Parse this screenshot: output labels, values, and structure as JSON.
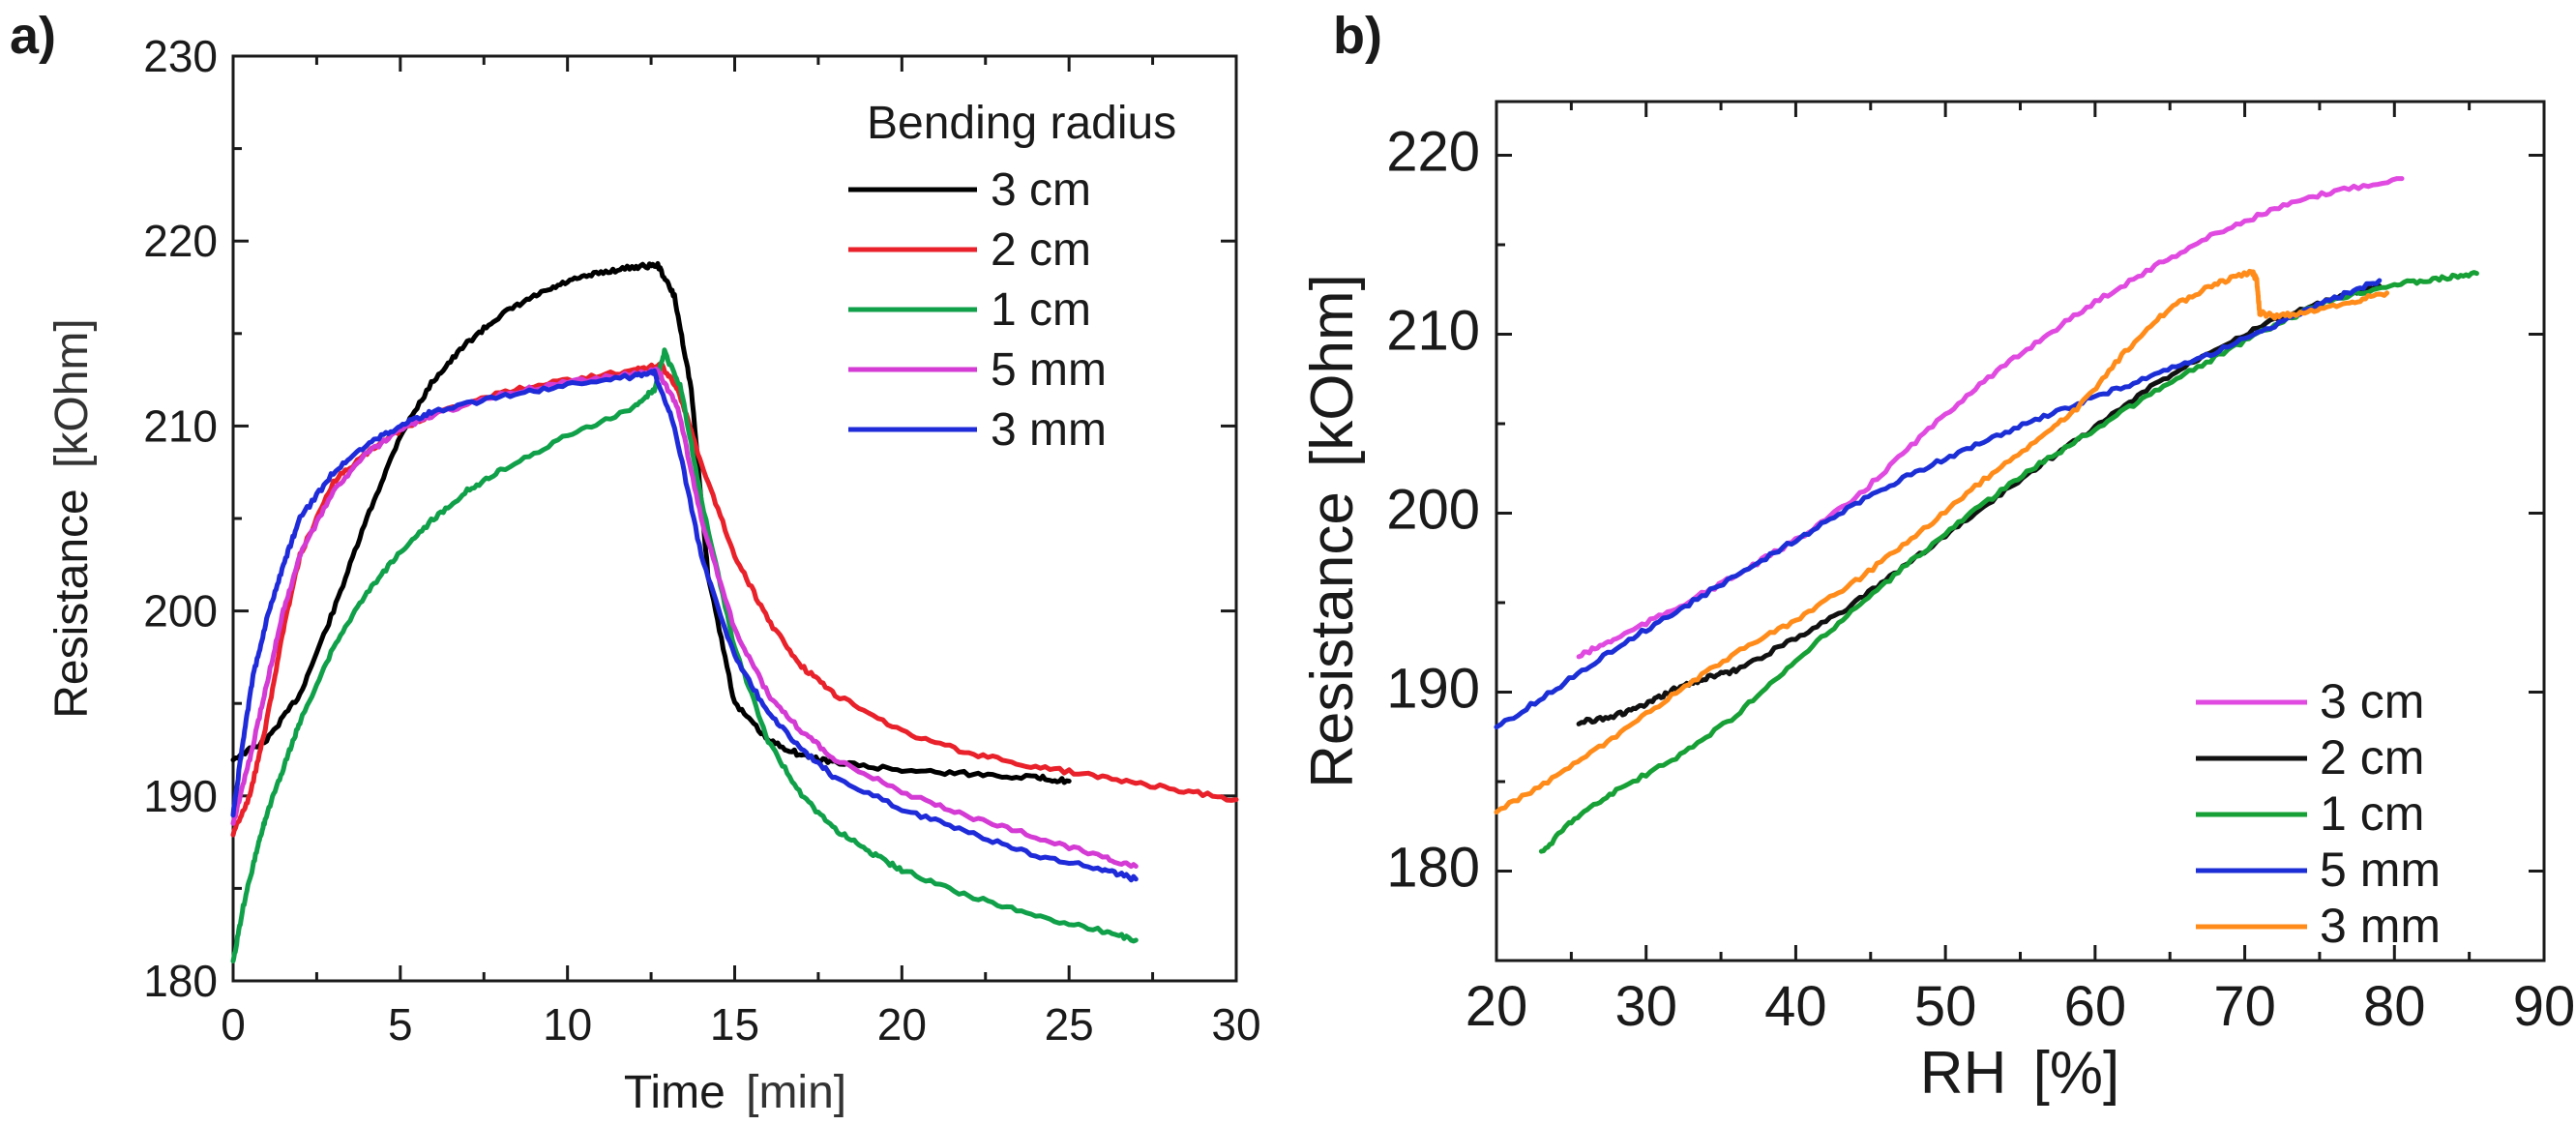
{
  "chart_data": [
    {
      "panel": "a)",
      "type": "line",
      "title": "",
      "xlabel_main": "Time",
      "xlabel_unit": "[min]",
      "ylabel_main": "Resistance",
      "ylabel_unit": "[kOhm]",
      "xlim": [
        0,
        30
      ],
      "ylim": [
        180,
        230
      ],
      "xticks": [
        "0",
        "5",
        "10",
        "15",
        "20",
        "25",
        "30"
      ],
      "yticks": [
        "180",
        "190",
        "200",
        "210",
        "220",
        "230"
      ],
      "legend_title": "Bending radius",
      "legend_position": "top-right",
      "series": [
        {
          "name": "3 cm",
          "color": "#000000",
          "x": [
            0,
            1,
            2,
            3,
            4,
            5,
            6,
            7,
            8,
            9,
            10,
            11,
            12,
            12.7,
            13.2,
            13.7,
            14.2,
            15,
            16,
            17,
            18,
            20,
            22,
            24,
            25
          ],
          "y": [
            192,
            193,
            195.5,
            200,
            205,
            209.5,
            212.5,
            214.5,
            216,
            217,
            217.8,
            218.3,
            218.6,
            218.7,
            217,
            212,
            202,
            195,
            193,
            192.2,
            191.8,
            191.4,
            191.2,
            191,
            190.8
          ]
        },
        {
          "name": "2 cm",
          "color": "#e8212a",
          "x": [
            0,
            0.5,
            1,
            1.5,
            2,
            3,
            4,
            5,
            6,
            8,
            10,
            12,
            12.8,
            13.3,
            14,
            15,
            16,
            17,
            18,
            20,
            22,
            24,
            26,
            28,
            30
          ],
          "y": [
            188,
            190,
            194,
            199,
            203,
            207,
            208.5,
            209.8,
            210.7,
            211.8,
            212.5,
            213,
            213.3,
            212,
            208,
            203,
            199.5,
            197,
            195.5,
            193.5,
            192.3,
            191.6,
            191,
            190.4,
            189.8
          ]
        },
        {
          "name": "1 cm",
          "color": "#11a04a",
          "x": [
            0,
            0.3,
            0.7,
            1,
            1.5,
            2,
            3,
            4,
            5,
            6,
            7,
            8,
            10,
            12,
            12.6,
            12.9,
            13.4,
            14,
            15,
            16,
            17,
            18,
            19,
            20,
            22,
            24,
            26,
            27
          ],
          "y": [
            181,
            184,
            187,
            189,
            191.5,
            194,
            198,
            201,
            203.2,
            205,
            206.5,
            207.6,
            209.5,
            211,
            212,
            214,
            212,
            206,
            198,
            193,
            190,
            188.2,
            187,
            186,
            184.6,
            183.5,
            182.7,
            182.2
          ]
        },
        {
          "name": "5 mm",
          "color": "#d43ad4",
          "x": [
            0,
            0.5,
            1,
            1.5,
            2,
            3,
            4,
            5,
            6,
            8,
            10,
            12,
            12.7,
            13.3,
            14,
            15,
            16,
            17,
            18,
            20,
            22,
            24,
            26,
            27
          ],
          "y": [
            188.5,
            192,
            196,
            200,
            203,
            206.5,
            208.5,
            209.8,
            210.6,
            211.7,
            212.4,
            212.8,
            213,
            211,
            205,
            199,
            195.5,
            193.5,
            192,
            190.2,
            188.9,
            187.8,
            186.7,
            186.2
          ]
        },
        {
          "name": "3 mm",
          "color": "#1f2bd8",
          "x": [
            0,
            0.3,
            0.6,
            1,
            1.5,
            2,
            3,
            4,
            5,
            6,
            8,
            10,
            12,
            12.6,
            13.2,
            14,
            15,
            16,
            17,
            18,
            20,
            22,
            24,
            26,
            27
          ],
          "y": [
            189,
            193,
            196.5,
            199.5,
            202.5,
            205,
            207.5,
            209,
            210,
            210.8,
            211.6,
            212.2,
            212.7,
            212.9,
            210,
            203,
            197.5,
            194.5,
            192.5,
            191,
            189.3,
            188,
            186.8,
            186,
            185.5
          ]
        }
      ]
    },
    {
      "panel": "b)",
      "type": "line",
      "title": "",
      "xlabel_main": "RH",
      "xlabel_unit": "[%]",
      "ylabel_main": "Resistance",
      "ylabel_unit": "[kOhm]",
      "xlim": [
        20,
        90
      ],
      "ylim": [
        175,
        223
      ],
      "xticks": [
        "20",
        "30",
        "40",
        "50",
        "60",
        "70",
        "80",
        "90"
      ],
      "yticks": [
        "180",
        "190",
        "200",
        "210",
        "220"
      ],
      "legend_position": "bottom-right",
      "series": [
        {
          "name": "3 cm",
          "color": "#e04ae0",
          "x": [
            25.5,
            28,
            32,
            36,
            40,
            44,
            48,
            52,
            56,
            60,
            64,
            68,
            72,
            76,
            80.5
          ],
          "y": [
            192,
            193,
            194.7,
            196.5,
            198.5,
            200.8,
            204,
            207,
            209.5,
            211.8,
            213.8,
            215.6,
            217,
            218,
            218.7
          ]
        },
        {
          "name": "2 cm",
          "color": "#111111",
          "x": [
            25.5,
            28,
            30,
            32,
            34,
            36,
            40,
            44,
            48,
            52,
            56,
            60,
            64,
            68,
            72,
            76,
            79
          ],
          "y": [
            188.3,
            188.7,
            189.3,
            190.2,
            190.8,
            191.2,
            193,
            195,
            197.5,
            200,
            202.5,
            204.8,
            207.2,
            209.2,
            210.8,
            212,
            212.7
          ]
        },
        {
          "name": "1 cm",
          "color": "#17a035",
          "x": [
            23,
            25,
            28,
            32,
            36,
            40,
            44,
            48,
            52,
            56,
            60,
            64,
            68,
            72,
            76,
            80,
            83,
            85.5
          ],
          "y": [
            181,
            182.8,
            184.5,
            186.3,
            188.7,
            191.7,
            194.7,
            197.5,
            200.2,
            202.6,
            204.7,
            206.8,
            208.7,
            210.5,
            212,
            212.8,
            213.1,
            213.4
          ]
        },
        {
          "name": "5 mm",
          "color": "#1c2fd6",
          "x": [
            20,
            24,
            28,
            32,
            36,
            40,
            44,
            48,
            52,
            56,
            60,
            64,
            68,
            72,
            76,
            79
          ],
          "y": [
            188,
            190.2,
            192.5,
            194.5,
            196.5,
            198.5,
            200.5,
            202.3,
            203.8,
            205.2,
            206.5,
            207.7,
            209,
            210.5,
            212,
            213
          ]
        },
        {
          "name": "3 mm",
          "color": "#ff8c1a",
          "x": [
            20,
            24,
            28,
            32,
            36,
            40,
            44,
            48,
            52,
            56,
            59,
            62,
            65,
            68,
            70.5,
            70.8,
            71,
            72,
            74,
            77,
            79.5
          ],
          "y": [
            183.3,
            185.3,
            187.5,
            190,
            192.2,
            194,
            196.2,
            198.7,
            201.5,
            204,
            206,
            209,
            211.5,
            212.8,
            213.5,
            213,
            211.2,
            211,
            211.2,
            211.8,
            212.3
          ]
        }
      ]
    }
  ]
}
